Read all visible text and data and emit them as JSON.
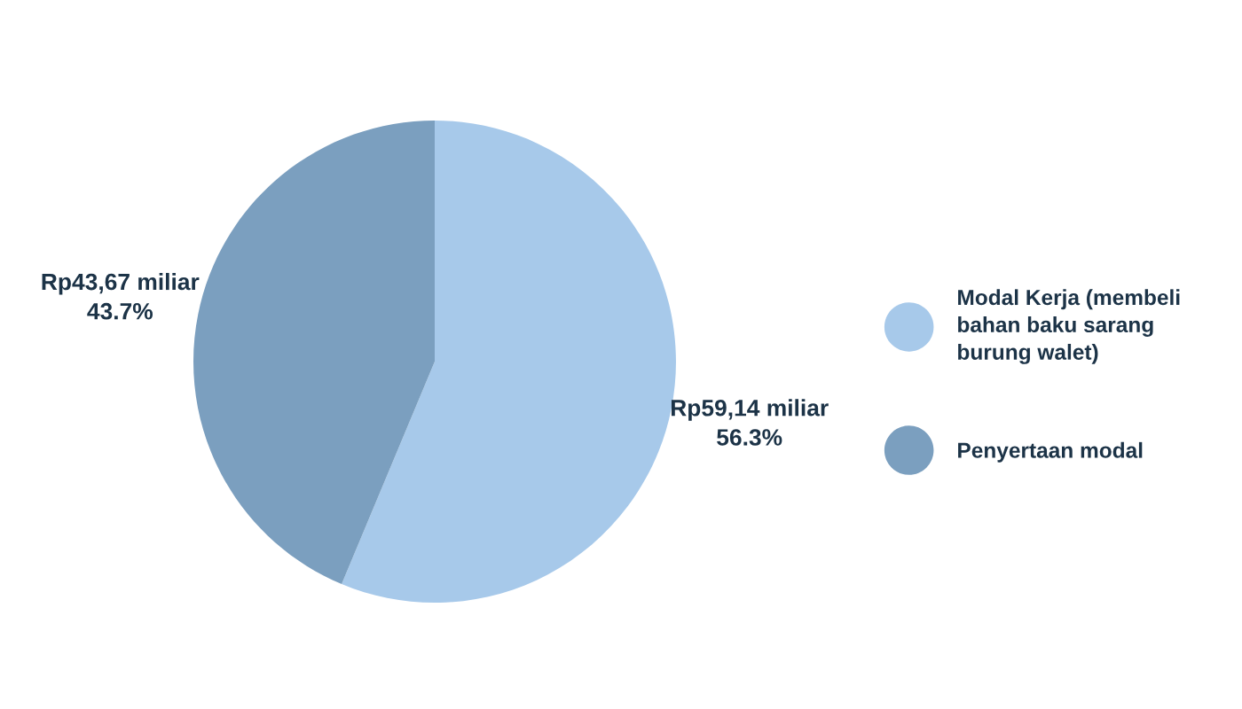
{
  "chart_data": {
    "type": "pie",
    "categories": [
      "Modal Kerja (membeli\nbahan baku sarang\nburung walet)",
      "Penyertaan modal"
    ],
    "values": [
      56.3,
      43.7
    ],
    "colors": [
      "#a7c9ea",
      "#7b9fbf"
    ],
    "value_labels": [
      "Rp59,14 miliar\n56.3%",
      "Rp43,67 miliar\n43.7%"
    ],
    "legend": "right"
  }
}
